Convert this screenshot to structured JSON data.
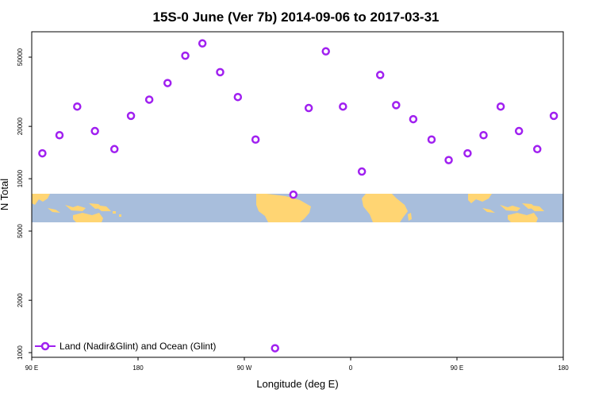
{
  "chart_data": {
    "type": "scatter",
    "title": "15S-0 June (Ver 7b)   2014-09-06 to 2017-03-31",
    "xlabel": "Longitude (deg E)",
    "ylabel": "N Total",
    "x_scale": "linear",
    "y_scale": "log",
    "xlim": [
      90,
      540
    ],
    "ylim": [
      940,
      70000
    ],
    "x_ticks": [
      {
        "value": 90,
        "label": "90 E"
      },
      {
        "value": 180,
        "label": "180"
      },
      {
        "value": 270,
        "label": "90 W"
      },
      {
        "value": 360,
        "label": "0"
      },
      {
        "value": 450,
        "label": "90 E"
      },
      {
        "value": 540,
        "label": "180"
      }
    ],
    "y_ticks": [
      {
        "value": 1000,
        "label": "1000"
      },
      {
        "value": 2000,
        "label": "2000"
      },
      {
        "value": 5000,
        "label": "5000"
      },
      {
        "value": 10000,
        "label": "10000"
      },
      {
        "value": 20000,
        "label": "20000"
      },
      {
        "value": 50000,
        "label": "50000"
      }
    ],
    "legend_position": "bottom-left",
    "series": [
      {
        "name": "Land (Nadir&Glint) and Ocean (Glint)",
        "color": "#a020f0",
        "marker": "open-circle",
        "points": [
          {
            "x": 99,
            "y": 14000
          },
          {
            "x": 113.5,
            "y": 17800
          },
          {
            "x": 128.5,
            "y": 26000
          },
          {
            "x": 143.5,
            "y": 18800
          },
          {
            "x": 160,
            "y": 14800
          },
          {
            "x": 174,
            "y": 23000
          },
          {
            "x": 189.5,
            "y": 28500
          },
          {
            "x": 205,
            "y": 35500
          },
          {
            "x": 220,
            "y": 51000
          },
          {
            "x": 234.5,
            "y": 60000
          },
          {
            "x": 249.5,
            "y": 41000
          },
          {
            "x": 264.5,
            "y": 29500
          },
          {
            "x": 279.5,
            "y": 16800
          },
          {
            "x": 296,
            "y": 1060
          },
          {
            "x": 311.5,
            "y": 8100
          },
          {
            "x": 324.5,
            "y": 25500
          },
          {
            "x": 339,
            "y": 54000
          },
          {
            "x": 353.5,
            "y": 26000
          },
          {
            "x": 369.5,
            "y": 11000
          },
          {
            "x": 385,
            "y": 39500
          },
          {
            "x": 398.5,
            "y": 26500
          },
          {
            "x": 413,
            "y": 22000
          },
          {
            "x": 428.5,
            "y": 16800
          },
          {
            "x": 443,
            "y": 12800
          },
          {
            "x": 459,
            "y": 14000
          },
          {
            "x": 472.5,
            "y": 17800
          },
          {
            "x": 487,
            "y": 26000
          },
          {
            "x": 502.5,
            "y": 18800
          },
          {
            "x": 518,
            "y": 14800
          },
          {
            "x": 532,
            "y": 23000
          }
        ]
      }
    ],
    "map_band": {
      "ocean_color": "#a8bedc",
      "land_color": "#ffd573"
    }
  }
}
